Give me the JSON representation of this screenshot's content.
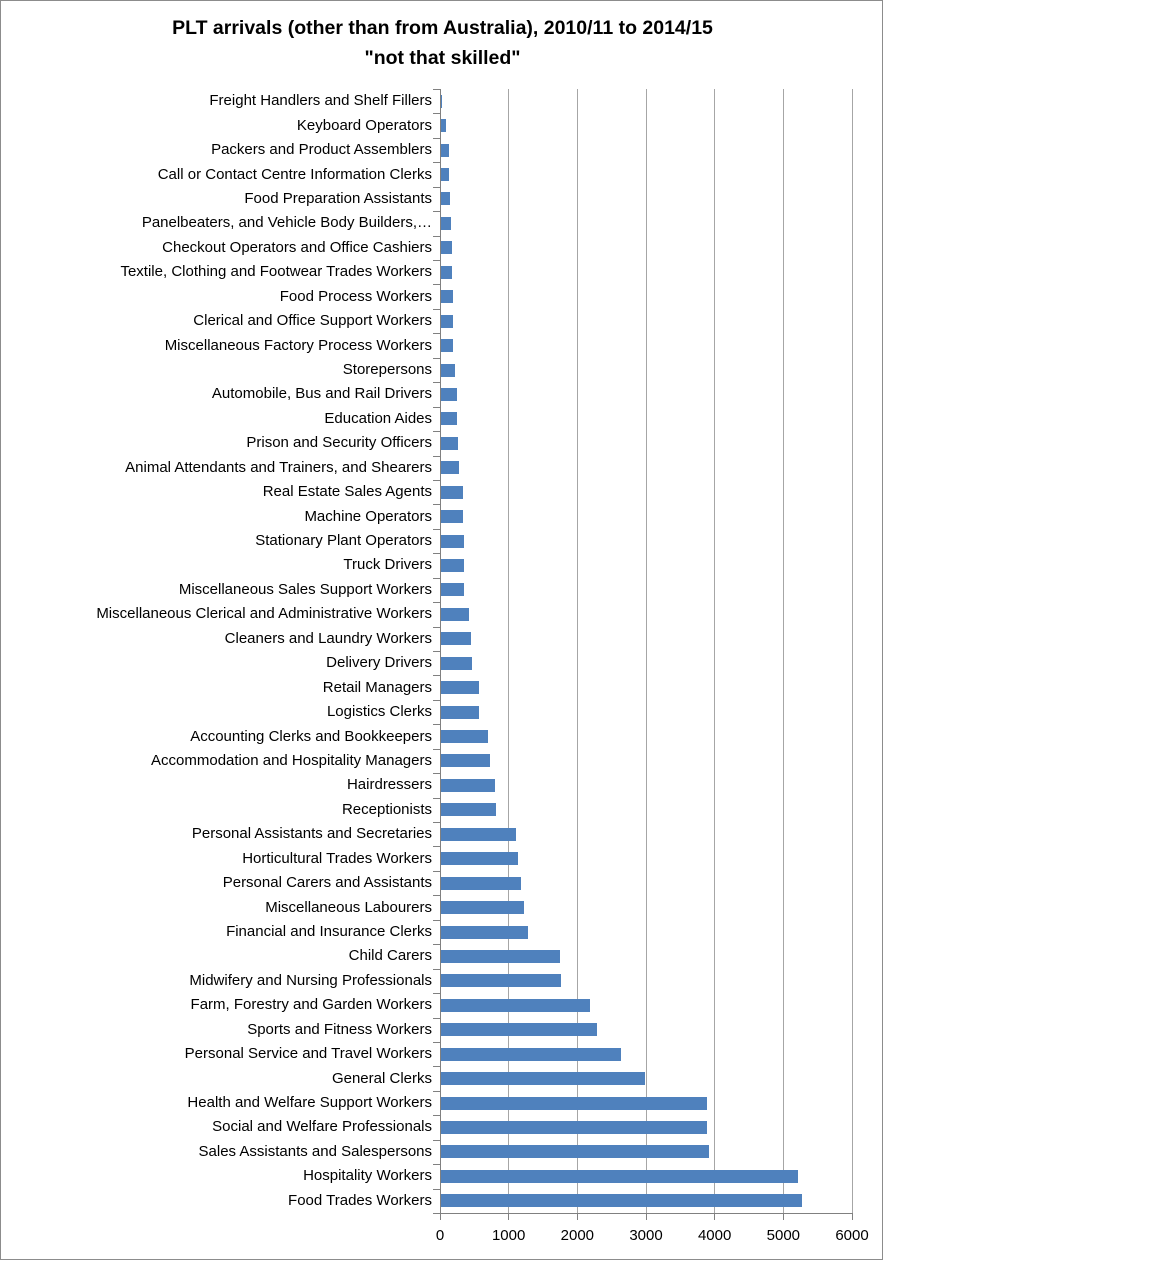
{
  "title": "PLT arrivals (other than from Australia), 2010/11 to 2014/15",
  "subtitle": "\"not that skilled\"",
  "colors": {
    "bar": "#4f81bd",
    "gridline": "#a6a6a6",
    "axis": "#808080",
    "frame_border": "#8c8c8c",
    "text": "#000000"
  },
  "chart_data": {
    "type": "bar",
    "orientation": "horizontal",
    "title": "PLT arrivals (other than from Australia), 2010/11 to 2014/15",
    "subtitle": "\"not that skilled\"",
    "xlabel": "",
    "ylabel": "",
    "xlim": [
      0,
      6000
    ],
    "x_ticks": [
      0,
      1000,
      2000,
      3000,
      4000,
      5000,
      6000
    ],
    "grid": "vertical",
    "legend": "none",
    "categories": [
      "Freight Handlers and Shelf Fillers",
      "Keyboard Operators",
      "Packers and Product Assemblers",
      "Call or Contact Centre Information Clerks",
      "Food Preparation Assistants",
      "Panelbeaters, and Vehicle Body Builders,…",
      "Checkout Operators and Office Cashiers",
      "Textile, Clothing and Footwear Trades Workers",
      "Food Process Workers",
      "Clerical and Office Support Workers",
      "Miscellaneous Factory Process Workers",
      "Storepersons",
      "Automobile, Bus and Rail Drivers",
      "Education Aides",
      "Prison and Security Officers",
      "Animal Attendants and Trainers, and Shearers",
      "Real Estate Sales Agents",
      "Machine Operators",
      "Stationary Plant Operators",
      "Truck Drivers",
      "Miscellaneous Sales Support Workers",
      "Miscellaneous Clerical and Administrative Workers",
      "Cleaners and Laundry Workers",
      "Delivery Drivers",
      "Retail Managers",
      "Logistics Clerks",
      "Accounting Clerks and Bookkeepers",
      "Accommodation and Hospitality Managers",
      "Hairdressers",
      "Receptionists",
      "Personal Assistants and Secretaries",
      "Horticultural Trades Workers",
      "Personal Carers and Assistants",
      "Miscellaneous Labourers",
      "Financial and Insurance Clerks",
      "Child Carers",
      "Midwifery and Nursing Professionals",
      "Farm, Forestry and Garden Workers",
      "Sports and Fitness Workers",
      "Personal Service and Travel Workers",
      "General Clerks",
      "Health and Welfare Support Workers",
      "Social and Welfare Professionals",
      "Sales Assistants and Salespersons",
      "Hospitality Workers",
      "Food Trades Workers"
    ],
    "values": [
      30,
      85,
      125,
      125,
      140,
      155,
      170,
      180,
      190,
      190,
      190,
      220,
      245,
      245,
      260,
      280,
      330,
      330,
      350,
      350,
      350,
      425,
      450,
      465,
      575,
      575,
      705,
      730,
      795,
      820,
      1110,
      1135,
      1180,
      1225,
      1285,
      1745,
      1760,
      2180,
      2285,
      2635,
      2990,
      3890,
      3890,
      3920,
      5210,
      5270
    ]
  }
}
